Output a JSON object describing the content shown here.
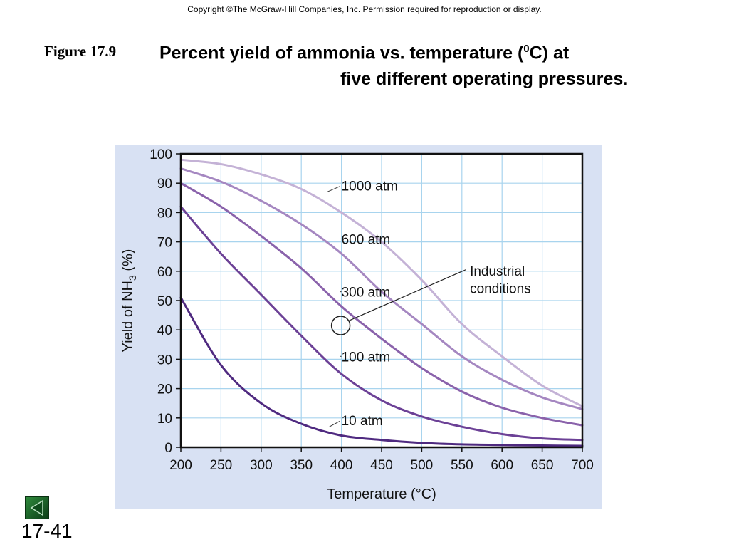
{
  "header": {
    "copyright": "Copyright ©The McGraw-Hill Companies, Inc.  Permission required for reproduction or display.",
    "figure_label": "Figure 17.9",
    "title_line1_before": "Percent yield of ammonia vs. temperature (",
    "title_line1_sup": "0",
    "title_line1_after": "C) at",
    "title_line2": "five different operating pressures."
  },
  "footer": {
    "slide_number": "17-41",
    "nav_icon": "triangle-left-icon"
  },
  "colors": {
    "panel_bg": "#d8e1f3",
    "plot_bg": "#ffffff",
    "grid": "#a8d4ee",
    "series": [
      "#c4b2d6",
      "#a587c1",
      "#8a62ab",
      "#6c4196",
      "#4f2a80"
    ]
  },
  "chart_data": {
    "type": "line",
    "title": "",
    "xlabel": "Temperature (°C)",
    "ylabel_parts": [
      "Yield of NH",
      "3",
      " (%)"
    ],
    "xlim": [
      200,
      700
    ],
    "ylim": [
      0,
      100
    ],
    "x_ticks": [
      200,
      250,
      300,
      350,
      400,
      450,
      500,
      550,
      600,
      650,
      700
    ],
    "y_ticks": [
      0,
      10,
      20,
      30,
      40,
      50,
      60,
      70,
      80,
      90,
      100
    ],
    "grid": true,
    "x": [
      200,
      250,
      300,
      350,
      400,
      450,
      500,
      550,
      600,
      650,
      700
    ],
    "series": [
      {
        "name": "1000 atm",
        "values": [
          98,
          96.5,
          93,
          88,
          80,
          70,
          57,
          42,
          31,
          21,
          14
        ]
      },
      {
        "name": "600 atm",
        "values": [
          95,
          90.5,
          84,
          76,
          66,
          53,
          42,
          31,
          23,
          17,
          13
        ]
      },
      {
        "name": "300 atm",
        "values": [
          90,
          82,
          72,
          61,
          48,
          37,
          27,
          19,
          13.5,
          10,
          7.5
        ]
      },
      {
        "name": "100 atm",
        "values": [
          82,
          66,
          52,
          38,
          25,
          16,
          10.5,
          7,
          4.5,
          3,
          2.5
        ]
      },
      {
        "name": "10 atm",
        "values": [
          51,
          28,
          15,
          8,
          4,
          2.5,
          1.5,
          1,
          0.8,
          0.6,
          0.5
        ]
      }
    ],
    "series_labels": [
      {
        "text": "1000 atm",
        "at_x": 382,
        "at_y": 87
      },
      {
        "text": "600 atm",
        "at_x": 400,
        "at_y": 71
      },
      {
        "text": "300 atm",
        "at_x": 400,
        "at_y": 53
      },
      {
        "text": "100 atm",
        "at_x": 400,
        "at_y": 31
      },
      {
        "text": "10 atm",
        "at_x": 385,
        "at_y": 7
      }
    ],
    "annotation": {
      "lines": [
        "Industrial",
        "conditions"
      ],
      "marker_x": 400,
      "marker_y": 41.5
    }
  }
}
